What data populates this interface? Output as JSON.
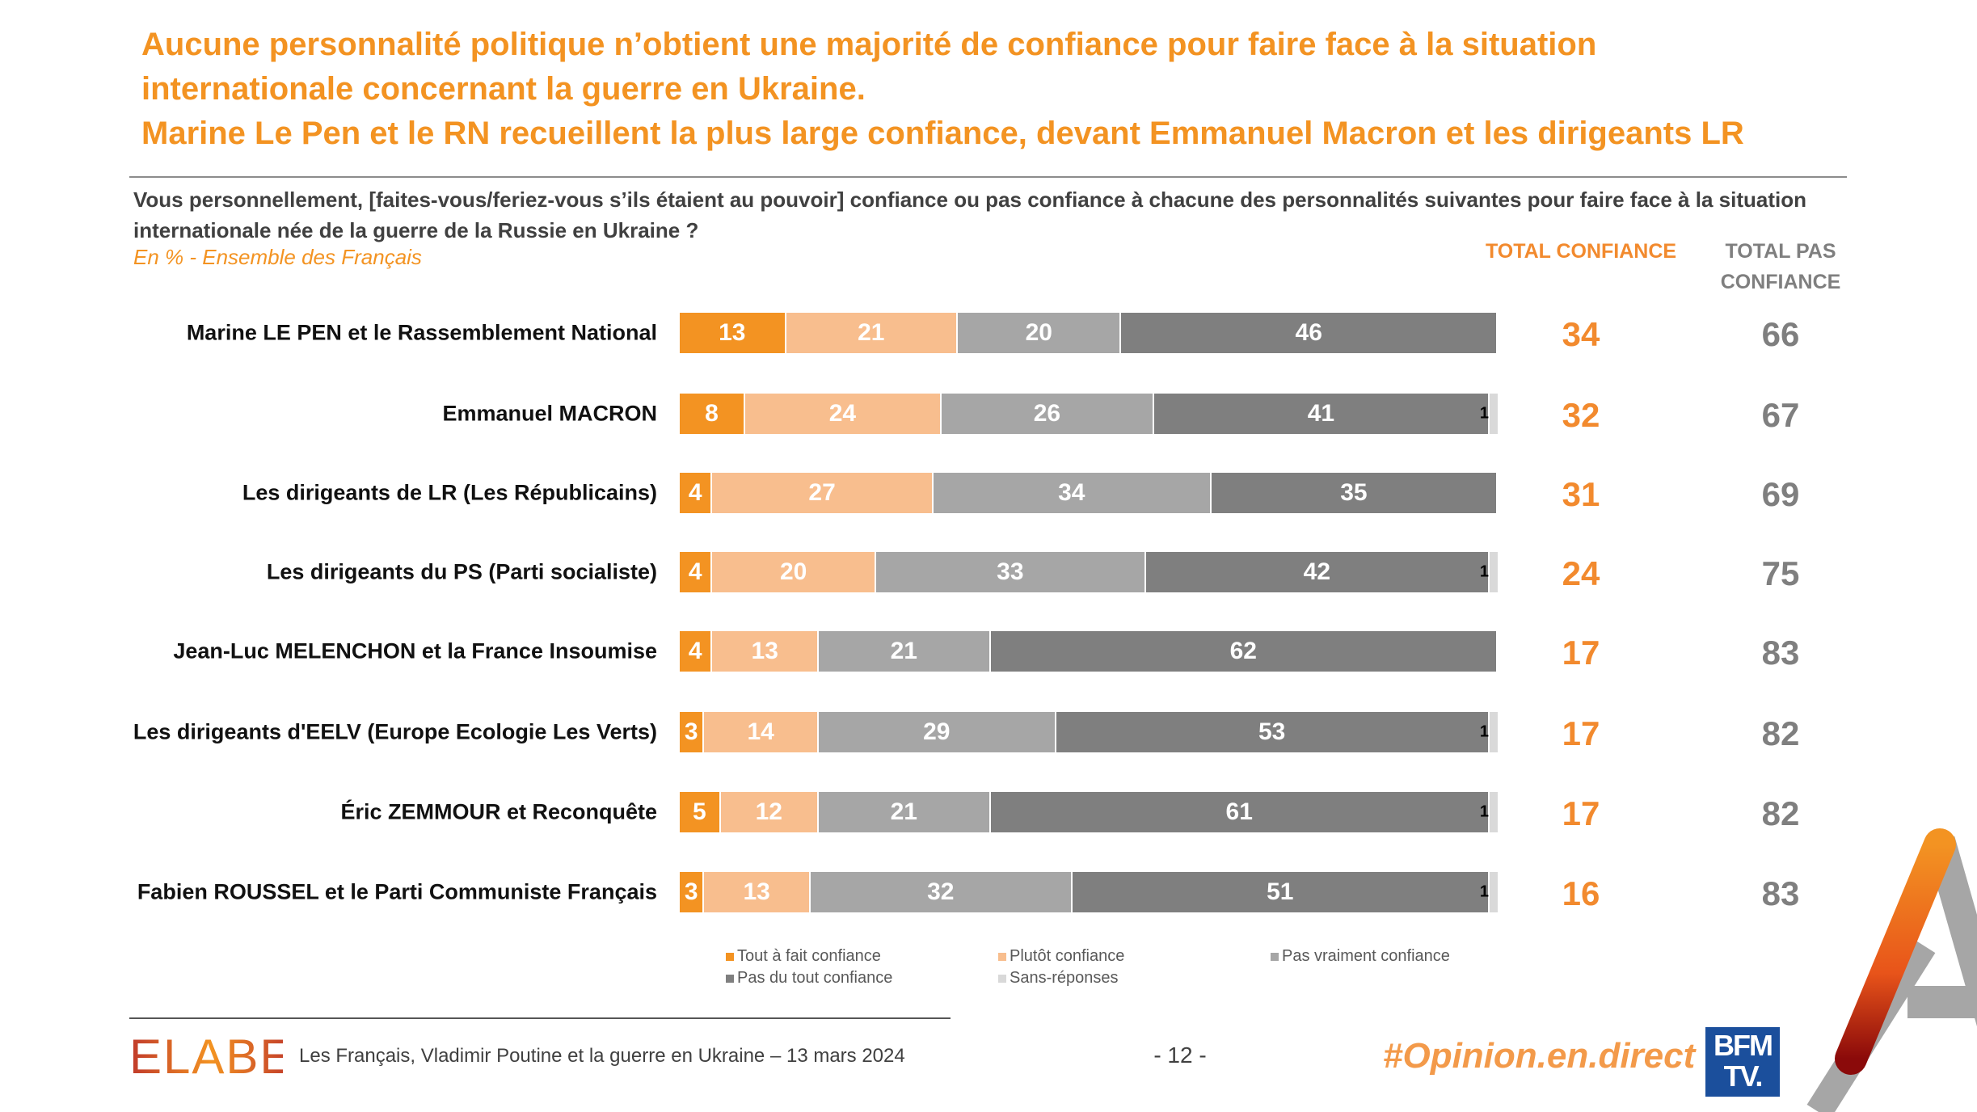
{
  "header": {
    "title_lines": [
      "Aucune personnalité politique n’obtient une majorité de confiance pour faire face à la situation",
      "internationale concernant la guerre en Ukraine.",
      "Marine Le Pen et le RN recueillent la plus large confiance, devant Emmanuel Macron et les dirigeants LR"
    ],
    "question": "Vous personnellement, [faites-vous/feriez-vous s’ils étaient au pouvoir] confiance ou pas confiance à chacune des personnalités suivantes pour faire face à la situation internationale née de la guerre de la Russie en Ukraine ?",
    "base": "En % - Ensemble des Français"
  },
  "columns": {
    "total_confiance": "TOTAL CONFIANCE",
    "total_pas_confiance": "TOTAL PAS CONFIANCE"
  },
  "colors": {
    "title": "#F39322",
    "tout_a_fait": "#F39322",
    "plutot": "#F8BE8E",
    "pas_vraiment": "#A6A6A6",
    "pas_du_tout": "#7F7F7F",
    "sans_reponses": "#D9D9D9",
    "total_confiance": "#F28A2E",
    "total_pas_confiance": "#7F7F7F"
  },
  "chart_data": {
    "type": "bar",
    "orientation": "horizontal",
    "stacked": true,
    "unit": "%",
    "xlim": [
      0,
      100
    ],
    "categories": [
      "Marine LE PEN et le Rassemblement National",
      "Emmanuel MACRON",
      "Les dirigeants de LR (Les Républicains)",
      "Les dirigeants du PS (Parti socialiste)",
      "Jean-Luc MELENCHON et la France Insoumise",
      "Les dirigeants d'EELV (Europe Ecologie Les Verts)",
      "Éric ZEMMOUR et Reconquête",
      "Fabien ROUSSEL et le Parti Communiste Français"
    ],
    "series": [
      {
        "name": "Tout à fait confiance",
        "values": [
          13,
          8,
          4,
          4,
          4,
          3,
          5,
          3
        ]
      },
      {
        "name": "Plutôt confiance",
        "values": [
          21,
          24,
          27,
          20,
          13,
          14,
          12,
          13
        ]
      },
      {
        "name": "Pas vraiment confiance",
        "values": [
          20,
          26,
          34,
          33,
          21,
          29,
          21,
          32
        ]
      },
      {
        "name": "Pas du tout confiance",
        "values": [
          46,
          41,
          35,
          42,
          62,
          53,
          61,
          51
        ]
      },
      {
        "name": "Sans-réponses",
        "values": [
          0,
          1,
          0,
          1,
          0,
          1,
          1,
          1
        ]
      }
    ],
    "total_confiance": [
      34,
      32,
      31,
      24,
      17,
      17,
      17,
      16
    ],
    "total_pas_confiance": [
      66,
      67,
      69,
      75,
      83,
      82,
      82,
      83
    ],
    "legend": [
      "Tout à fait confiance",
      "Plutôt confiance",
      "Pas vraiment confiance",
      "Pas du tout confiance",
      "Sans-réponses"
    ],
    "legend_placement": "bottom",
    "grid": false
  },
  "footer": {
    "logo": "ELABE",
    "source": "Les Français, Vladimir Poutine et la guerre en Ukraine – 13 mars 2024",
    "page": "- 12 -",
    "hashtag": "#Opinion.en.direct",
    "partner_logo": "BFM TV."
  }
}
